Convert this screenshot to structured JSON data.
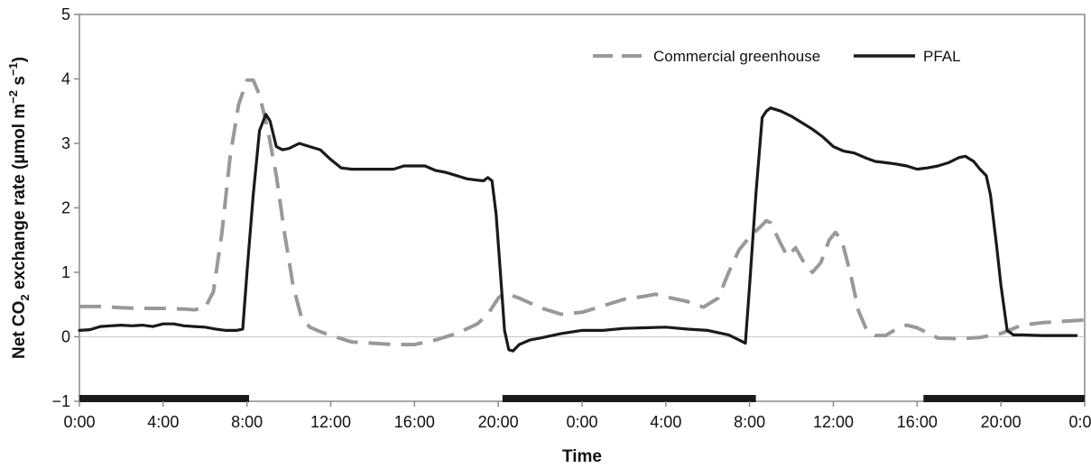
{
  "chart_data": {
    "type": "line",
    "title": "",
    "xlabel": "Time",
    "ylabel_parts": {
      "pre": "Net CO",
      "sub": "2",
      "mid": " exchange rate (µmol m",
      "sup1": "−2",
      "mid2": " s",
      "sup2": "−1",
      "post": ")"
    },
    "ylim": [
      -1,
      5
    ],
    "xlim": [
      0,
      48
    ],
    "x_unit": "hours elapsed from first 0:00",
    "y_ticks": [
      {
        "value": -1,
        "label": "−1"
      },
      {
        "value": 0,
        "label": "0"
      },
      {
        "value": 1,
        "label": "1"
      },
      {
        "value": 2,
        "label": "2"
      },
      {
        "value": 3,
        "label": "3"
      },
      {
        "value": 4,
        "label": "4"
      },
      {
        "value": 5,
        "label": "5"
      }
    ],
    "x_ticks": [
      {
        "value": 0,
        "label": "0:00"
      },
      {
        "value": 4,
        "label": "4:00"
      },
      {
        "value": 8,
        "label": "8:00"
      },
      {
        "value": 12,
        "label": "12:00"
      },
      {
        "value": 16,
        "label": "16:00"
      },
      {
        "value": 20,
        "label": "20:00"
      },
      {
        "value": 24,
        "label": "0:00"
      },
      {
        "value": 28,
        "label": "4:00"
      },
      {
        "value": 32,
        "label": "8:00"
      },
      {
        "value": 36,
        "label": "12:00"
      },
      {
        "value": 40,
        "label": "16:00"
      },
      {
        "value": 44,
        "label": "20:00"
      },
      {
        "value": 48,
        "label": "0:00"
      }
    ],
    "dark_periods": [
      [
        0,
        8.1
      ],
      [
        20.2,
        32.3
      ],
      [
        40.3,
        48
      ]
    ],
    "legend_position": "top-right",
    "series": [
      {
        "name": "Commercial greenhouse",
        "style": "dashed",
        "color": "#999999",
        "points": [
          [
            0,
            0.47
          ],
          [
            1,
            0.47
          ],
          [
            2,
            0.45
          ],
          [
            3,
            0.44
          ],
          [
            4,
            0.44
          ],
          [
            5,
            0.43
          ],
          [
            5.5,
            0.42
          ],
          [
            6,
            0.45
          ],
          [
            6.4,
            0.7
          ],
          [
            6.8,
            1.6
          ],
          [
            7.2,
            2.8
          ],
          [
            7.6,
            3.6
          ],
          [
            8.0,
            3.98
          ],
          [
            8.3,
            3.98
          ],
          [
            8.6,
            3.75
          ],
          [
            9.0,
            3.2
          ],
          [
            9.4,
            2.5
          ],
          [
            9.8,
            1.6
          ],
          [
            10.2,
            0.8
          ],
          [
            10.6,
            0.3
          ],
          [
            11,
            0.15
          ],
          [
            11.5,
            0.08
          ],
          [
            12,
            0.02
          ],
          [
            12.5,
            -0.03
          ],
          [
            13,
            -0.08
          ],
          [
            14,
            -0.1
          ],
          [
            15,
            -0.12
          ],
          [
            16,
            -0.12
          ],
          [
            17,
            -0.05
          ],
          [
            18,
            0.05
          ],
          [
            19,
            0.2
          ],
          [
            19.5,
            0.35
          ],
          [
            20,
            0.6
          ],
          [
            20.3,
            0.68
          ],
          [
            21,
            0.6
          ],
          [
            22,
            0.45
          ],
          [
            23,
            0.35
          ],
          [
            24,
            0.38
          ],
          [
            25,
            0.48
          ],
          [
            26,
            0.58
          ],
          [
            27,
            0.63
          ],
          [
            27.5,
            0.66
          ],
          [
            28,
            0.62
          ],
          [
            29,
            0.55
          ],
          [
            29.8,
            0.46
          ],
          [
            30.5,
            0.6
          ],
          [
            31,
            1.0
          ],
          [
            31.5,
            1.35
          ],
          [
            32,
            1.55
          ],
          [
            32.5,
            1.7
          ],
          [
            32.8,
            1.8
          ],
          [
            33,
            1.77
          ],
          [
            33.4,
            1.5
          ],
          [
            33.8,
            1.25
          ],
          [
            34.2,
            1.38
          ],
          [
            34.6,
            1.15
          ],
          [
            35,
            1.0
          ],
          [
            35.4,
            1.15
          ],
          [
            35.8,
            1.5
          ],
          [
            36.1,
            1.62
          ],
          [
            36.4,
            1.5
          ],
          [
            36.8,
            1.0
          ],
          [
            37.2,
            0.4
          ],
          [
            37.6,
            0.1
          ],
          [
            38,
            0.02
          ],
          [
            38.5,
            0.02
          ],
          [
            39,
            0.12
          ],
          [
            39.5,
            0.18
          ],
          [
            40,
            0.14
          ],
          [
            41,
            -0.02
          ],
          [
            42,
            -0.03
          ],
          [
            43,
            -0.01
          ],
          [
            44,
            0.05
          ],
          [
            45,
            0.18
          ],
          [
            46,
            0.22
          ],
          [
            47,
            0.24
          ],
          [
            48,
            0.26
          ]
        ]
      },
      {
        "name": "PFAL",
        "style": "solid",
        "color": "#1a1a1a",
        "points": [
          [
            0,
            0.1
          ],
          [
            0.5,
            0.11
          ],
          [
            1,
            0.16
          ],
          [
            1.5,
            0.17
          ],
          [
            2,
            0.18
          ],
          [
            2.5,
            0.17
          ],
          [
            3,
            0.18
          ],
          [
            3.5,
            0.16
          ],
          [
            4,
            0.2
          ],
          [
            4.5,
            0.2
          ],
          [
            5,
            0.17
          ],
          [
            5.5,
            0.16
          ],
          [
            6,
            0.15
          ],
          [
            6.5,
            0.12
          ],
          [
            7,
            0.1
          ],
          [
            7.5,
            0.1
          ],
          [
            7.8,
            0.12
          ],
          [
            8.0,
            1.0
          ],
          [
            8.3,
            2.2
          ],
          [
            8.6,
            3.2
          ],
          [
            8.9,
            3.45
          ],
          [
            9.1,
            3.35
          ],
          [
            9.4,
            2.95
          ],
          [
            9.7,
            2.9
          ],
          [
            10,
            2.92
          ],
          [
            10.5,
            3.0
          ],
          [
            11,
            2.95
          ],
          [
            11.5,
            2.9
          ],
          [
            12,
            2.75
          ],
          [
            12.5,
            2.62
          ],
          [
            13,
            2.6
          ],
          [
            14,
            2.6
          ],
          [
            15,
            2.6
          ],
          [
            15.5,
            2.65
          ],
          [
            16,
            2.65
          ],
          [
            16.5,
            2.65
          ],
          [
            17,
            2.58
          ],
          [
            17.5,
            2.55
          ],
          [
            18,
            2.5
          ],
          [
            18.5,
            2.45
          ],
          [
            19,
            2.43
          ],
          [
            19.3,
            2.42
          ],
          [
            19.5,
            2.47
          ],
          [
            19.7,
            2.42
          ],
          [
            19.9,
            1.9
          ],
          [
            20.1,
            1.0
          ],
          [
            20.3,
            0.1
          ],
          [
            20.5,
            -0.2
          ],
          [
            20.7,
            -0.22
          ],
          [
            21,
            -0.12
          ],
          [
            21.5,
            -0.05
          ],
          [
            22,
            -0.02
          ],
          [
            23,
            0.05
          ],
          [
            24,
            0.1
          ],
          [
            25,
            0.1
          ],
          [
            26,
            0.13
          ],
          [
            27,
            0.14
          ],
          [
            28,
            0.15
          ],
          [
            29,
            0.12
          ],
          [
            30,
            0.1
          ],
          [
            31,
            0.03
          ],
          [
            31.5,
            -0.05
          ],
          [
            31.8,
            -0.1
          ],
          [
            32.0,
            0.8
          ],
          [
            32.3,
            2.2
          ],
          [
            32.6,
            3.4
          ],
          [
            32.8,
            3.5
          ],
          [
            33,
            3.55
          ],
          [
            33.5,
            3.5
          ],
          [
            34,
            3.42
          ],
          [
            34.5,
            3.32
          ],
          [
            35,
            3.22
          ],
          [
            35.5,
            3.1
          ],
          [
            36,
            2.95
          ],
          [
            36.5,
            2.88
          ],
          [
            37,
            2.85
          ],
          [
            37.5,
            2.78
          ],
          [
            38,
            2.72
          ],
          [
            38.5,
            2.7
          ],
          [
            39,
            2.68
          ],
          [
            39.5,
            2.65
          ],
          [
            40,
            2.6
          ],
          [
            40.5,
            2.62
          ],
          [
            41,
            2.65
          ],
          [
            41.5,
            2.7
          ],
          [
            42,
            2.78
          ],
          [
            42.3,
            2.8
          ],
          [
            42.7,
            2.72
          ],
          [
            43,
            2.6
          ],
          [
            43.3,
            2.5
          ],
          [
            43.5,
            2.2
          ],
          [
            43.8,
            1.4
          ],
          [
            44.0,
            0.8
          ],
          [
            44.3,
            0.1
          ],
          [
            44.6,
            0.03
          ],
          [
            45,
            0.03
          ],
          [
            46,
            0.02
          ],
          [
            47,
            0.02
          ],
          [
            47.6,
            0.02
          ]
        ]
      }
    ]
  }
}
